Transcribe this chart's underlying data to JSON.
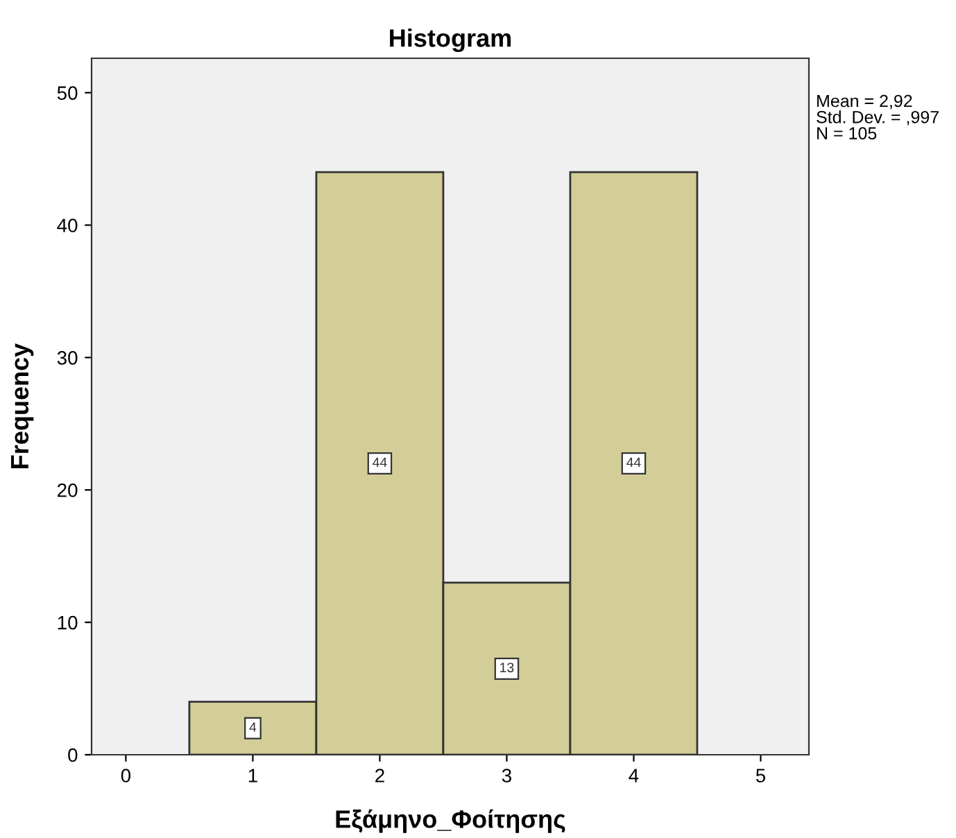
{
  "chart_data": {
    "type": "histogram",
    "title": "Histogram",
    "xlabel": "Εξάμηνο_Φοίτησης",
    "ylabel": "Frequency",
    "bins": [
      0.5,
      1.5,
      2.5,
      3.5,
      4.5
    ],
    "values": [
      4,
      44,
      13,
      44
    ],
    "color": "#d3ce97",
    "data_labels": true,
    "xlim": [
      -0.27,
      5.38
    ],
    "xticks": [
      0,
      1,
      2,
      3,
      4,
      5
    ],
    "ylim": [
      0,
      52.6
    ],
    "yticks": [
      0,
      10,
      20,
      30,
      40,
      50
    ],
    "grid": false,
    "annotations": [
      "Mean = 2,92",
      "Std. Dev. = ,997",
      "N = 105"
    ]
  }
}
